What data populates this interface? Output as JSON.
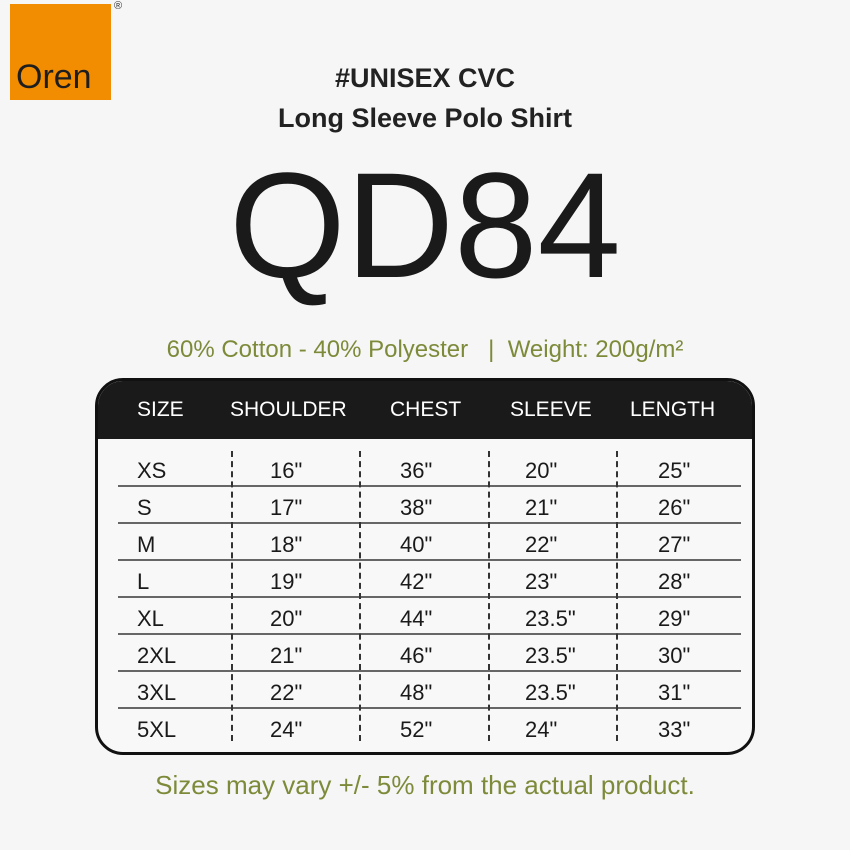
{
  "brand": {
    "logo_text": "Oren",
    "registered": "®",
    "color": "#f28c00"
  },
  "title": {
    "line1": "#UNISEX CVC",
    "line2": "Long Sleeve Polo Shirt",
    "code": "QD84"
  },
  "spec": "60% Cotton - 40% Polyester   |  Weight: 200g/m²",
  "table": {
    "headers": [
      "SIZE",
      "SHOULDER",
      "CHEST",
      "SLEEVE",
      "LENGTH"
    ],
    "rows": [
      [
        "XS",
        "16\"",
        "36\"",
        "20\"",
        "25\""
      ],
      [
        "S",
        "17\"",
        "38\"",
        "21\"",
        "26\""
      ],
      [
        "M",
        "18\"",
        "40\"",
        "22\"",
        "27\""
      ],
      [
        "L",
        "19\"",
        "42\"",
        "23\"",
        "28\""
      ],
      [
        "XL",
        "20\"",
        "44\"",
        "23.5\"",
        "29\""
      ],
      [
        "2XL",
        "21\"",
        "46\"",
        "23.5\"",
        "30\""
      ],
      [
        "3XL",
        "22\"",
        "48\"",
        "23.5\"",
        "31\""
      ],
      [
        "5XL",
        "24\"",
        "52\"",
        "24\"",
        "33\""
      ]
    ]
  },
  "footer": "Sizes may vary +/- 5% from the actual product.",
  "colors": {
    "accent": "#7d8a3a",
    "header_bg": "#1a1a1a"
  }
}
